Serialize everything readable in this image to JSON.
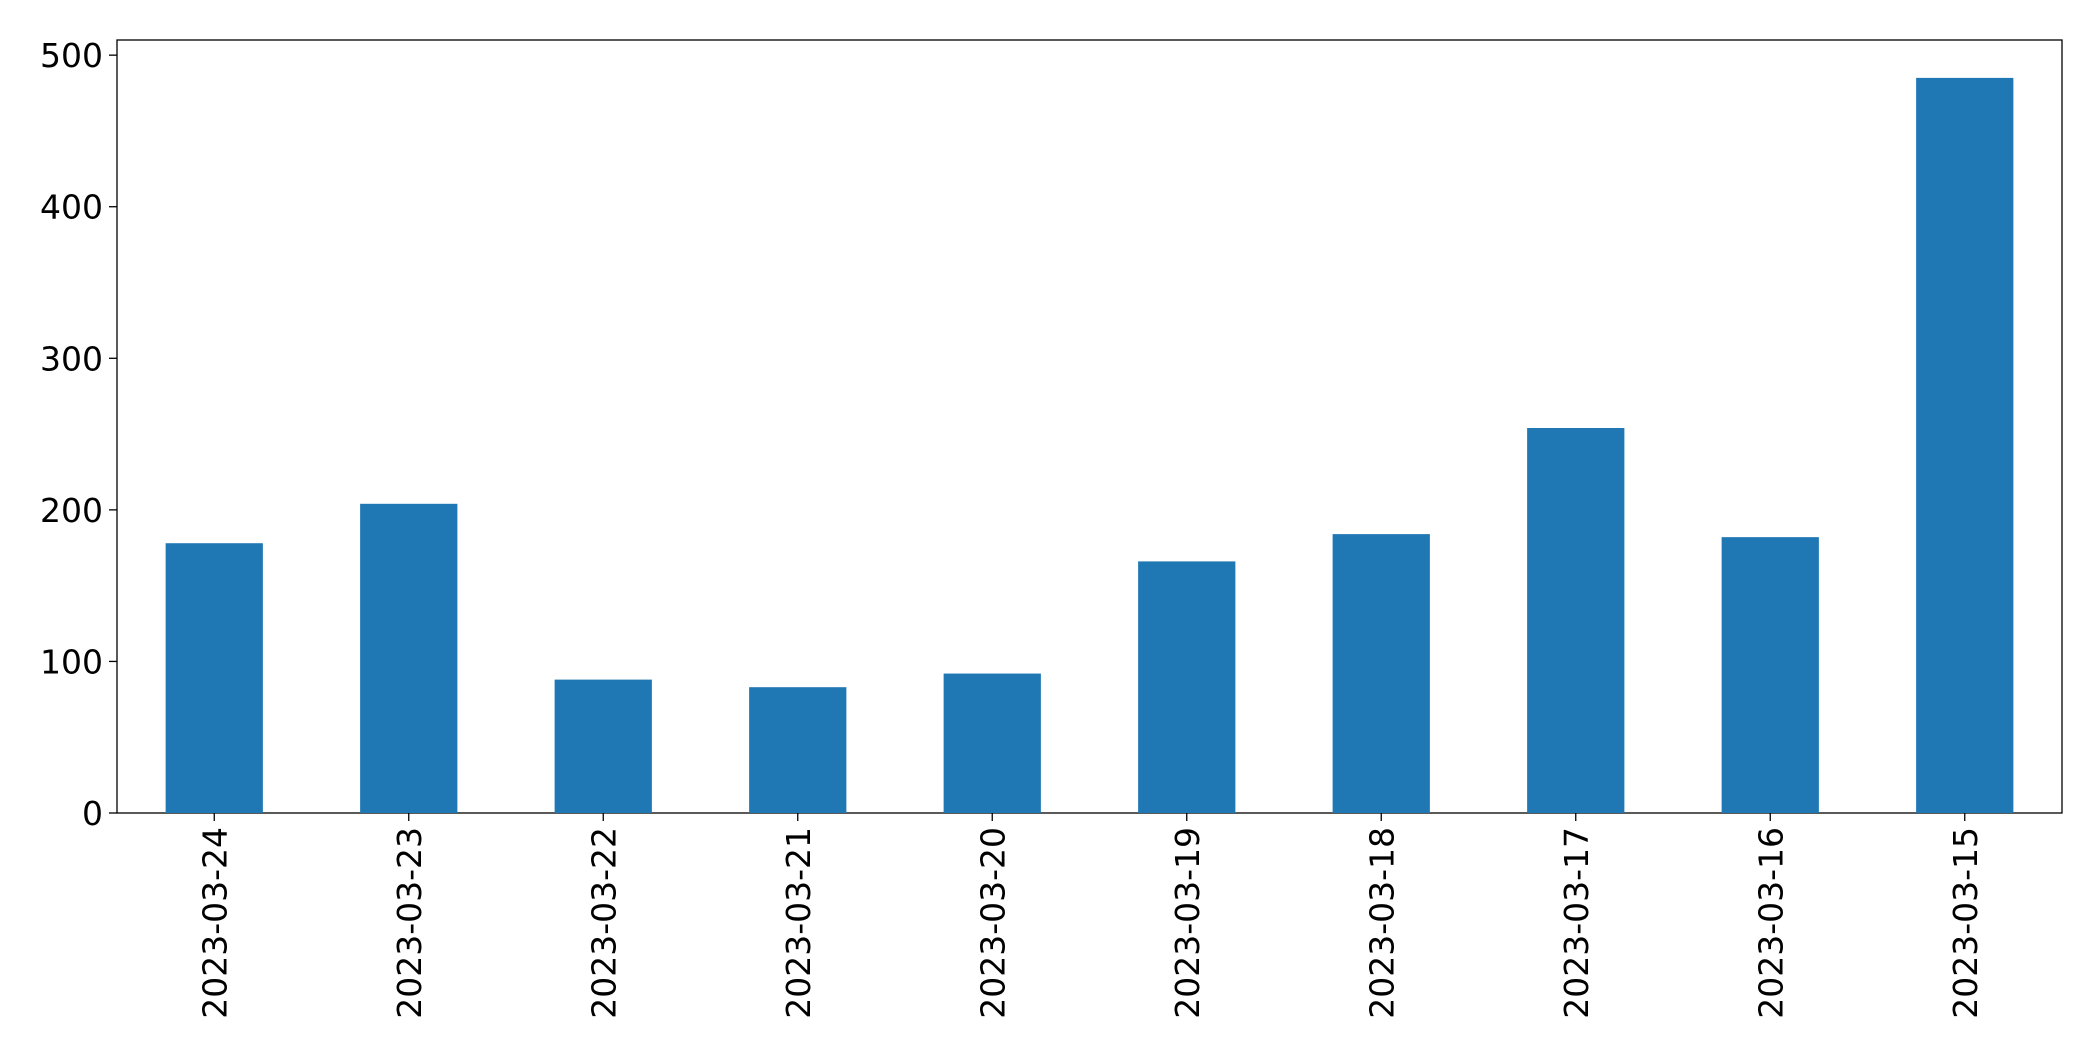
{
  "chart_data": {
    "type": "bar",
    "title": "",
    "xlabel": "",
    "ylabel": "",
    "categories": [
      "2023-03-24",
      "2023-03-23",
      "2023-03-22",
      "2023-03-21",
      "2023-03-20",
      "2023-03-19",
      "2023-03-18",
      "2023-03-17",
      "2023-03-16",
      "2023-03-15"
    ],
    "values": [
      178,
      204,
      88,
      83,
      92,
      166,
      184,
      254,
      182,
      485
    ],
    "ylim": [
      0,
      510
    ],
    "yticks": [
      0,
      100,
      200,
      300,
      400,
      500
    ],
    "bar_color": "#1f77b4",
    "grid": false,
    "legend": false
  }
}
